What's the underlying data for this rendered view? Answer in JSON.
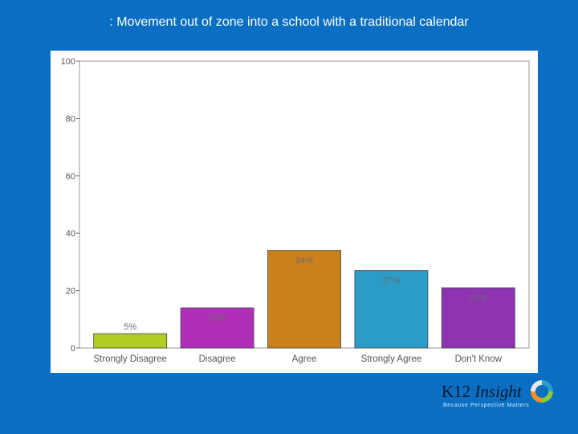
{
  "slide": {
    "title": ": Movement out of zone into a school with a traditional calendar"
  },
  "chart_data": {
    "type": "bar",
    "categories": [
      "Strongly Disagree",
      "Disagree",
      "Agree",
      "Strongly Agree",
      "Don't Know"
    ],
    "values": [
      5,
      14,
      34,
      27,
      21
    ],
    "data_labels": [
      "5%",
      "14%",
      "34%",
      "27%",
      "21%"
    ],
    "colors": [
      "#b3cc22",
      "#b12fb8",
      "#cc801c",
      "#2a9cc7",
      "#8e33b2"
    ],
    "ylim": [
      0,
      100
    ],
    "y_ticks": [
      0,
      20,
      40,
      60,
      80,
      100
    ],
    "grid": false,
    "legend": "none"
  },
  "logo": {
    "name_plain": "K12",
    "name_italic": "Insight",
    "tagline": "Because Perspective Matters",
    "ring_colors": [
      "#2a9cc7",
      "#8dc63f",
      "#f7941d",
      "#e8e8e8"
    ]
  }
}
